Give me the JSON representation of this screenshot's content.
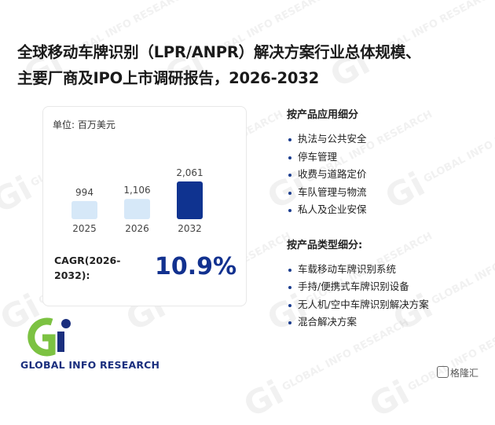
{
  "title_lines": [
    "全球移动车牌识别（LPR/ANPR）解决方案行业总体规模、",
    "主要厂商及IPO上市调研报告，2026-2032"
  ],
  "chart_data": {
    "type": "bar",
    "unit_label": "单位: 百万美元",
    "categories": [
      "2025",
      "2026",
      "2032"
    ],
    "values": [
      994,
      1106,
      2061
    ],
    "value_labels": [
      "994",
      "1,106",
      "2,061"
    ],
    "colors": [
      "#d6e8f8",
      "#d6e8f8",
      "#0f3390"
    ],
    "ylim": [
      0,
      2061
    ]
  },
  "cagr": {
    "label": "CAGR(2026-2032):",
    "value": "10.9%"
  },
  "application": {
    "title": "按产品应用细分",
    "items": [
      "执法与公共安全",
      "停车管理",
      "收费与道路定价",
      "车队管理与物流",
      "私人及企业安保"
    ]
  },
  "product_type": {
    "title": "按产品类型细分:",
    "items": [
      "车载移动车牌识别系统",
      "手持/便携式车牌识别设备",
      "无人机/空中车牌识别解决方案",
      "混合解决方案"
    ]
  },
  "logo": {
    "text": "GLOBAL INFO RESEARCH",
    "mark": "Gi"
  },
  "watermark": {
    "text": "GLOBAL INFO RESEARCH",
    "mark": "Gi"
  },
  "badge": {
    "text": "格隆汇",
    "icon": "gelonghui-logo-icon"
  },
  "colors": {
    "accent": "#0f3390",
    "light_bar": "#d6e8f8",
    "logo_green": "#7cc242",
    "logo_blue": "#1b2f7e"
  }
}
